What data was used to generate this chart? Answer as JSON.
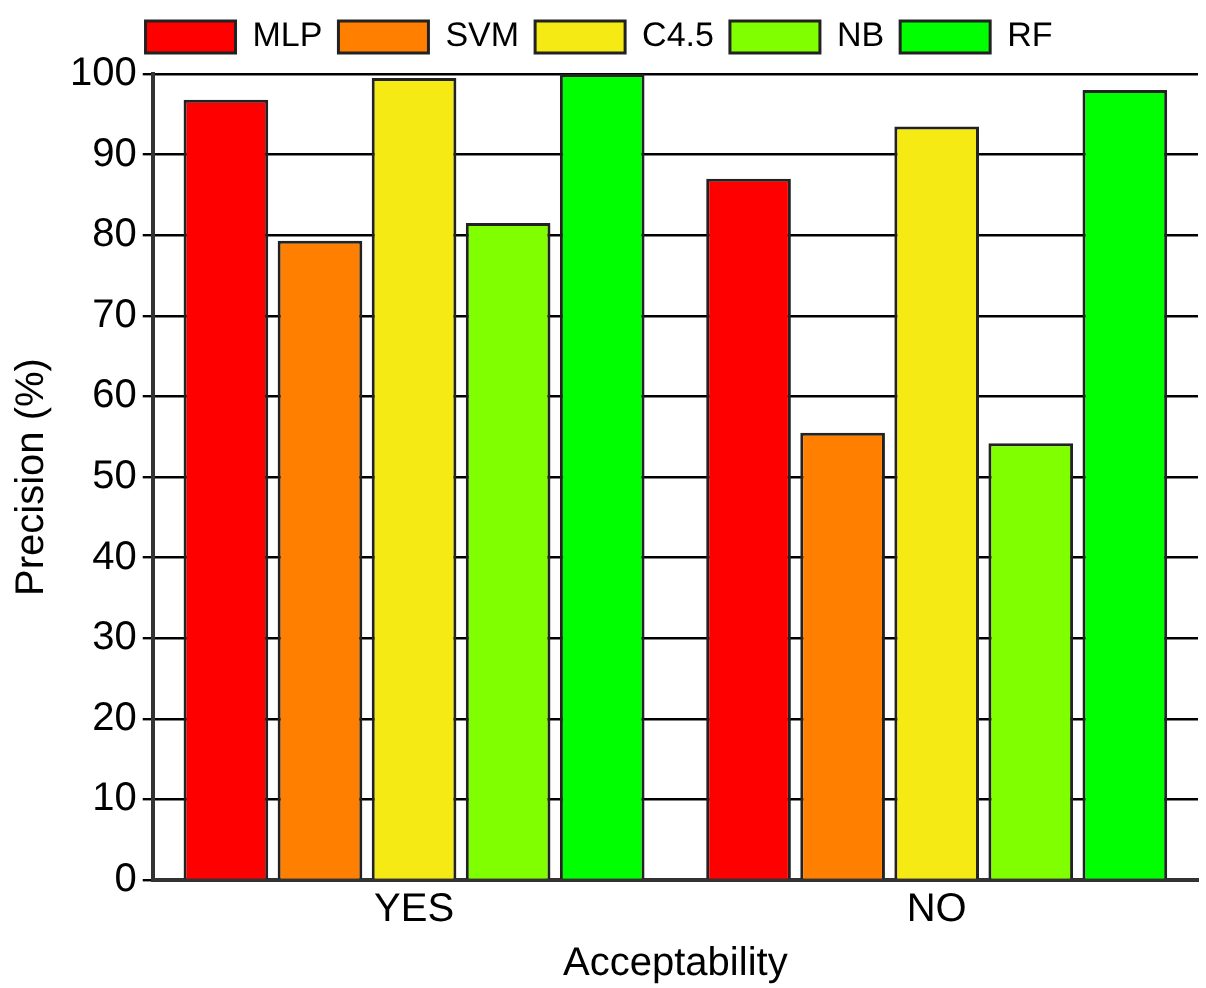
{
  "chart_data": {
    "type": "bar",
    "xlabel": "Acceptability",
    "ylabel": "Precision (%)",
    "categories": [
      "YES",
      "NO"
    ],
    "series": [
      {
        "name": "MLP",
        "color": "#ff0000",
        "values": [
          96.8,
          87
        ]
      },
      {
        "name": "SVM",
        "color": "#ff8000",
        "values": [
          79.3,
          55.5
        ]
      },
      {
        "name": "C4.5",
        "color": "#f5ea14",
        "values": [
          99.5,
          93.5
        ]
      },
      {
        "name": "NB",
        "color": "#80ff00",
        "values": [
          81.5,
          54.2
        ]
      },
      {
        "name": "RF",
        "color": "#00ff00",
        "values": [
          100,
          98
        ]
      }
    ],
    "ylim": [
      0,
      100
    ],
    "yticks": [
      0,
      10,
      20,
      30,
      40,
      50,
      60,
      70,
      80,
      90,
      100
    ],
    "grid": "y",
    "legend": "top"
  }
}
